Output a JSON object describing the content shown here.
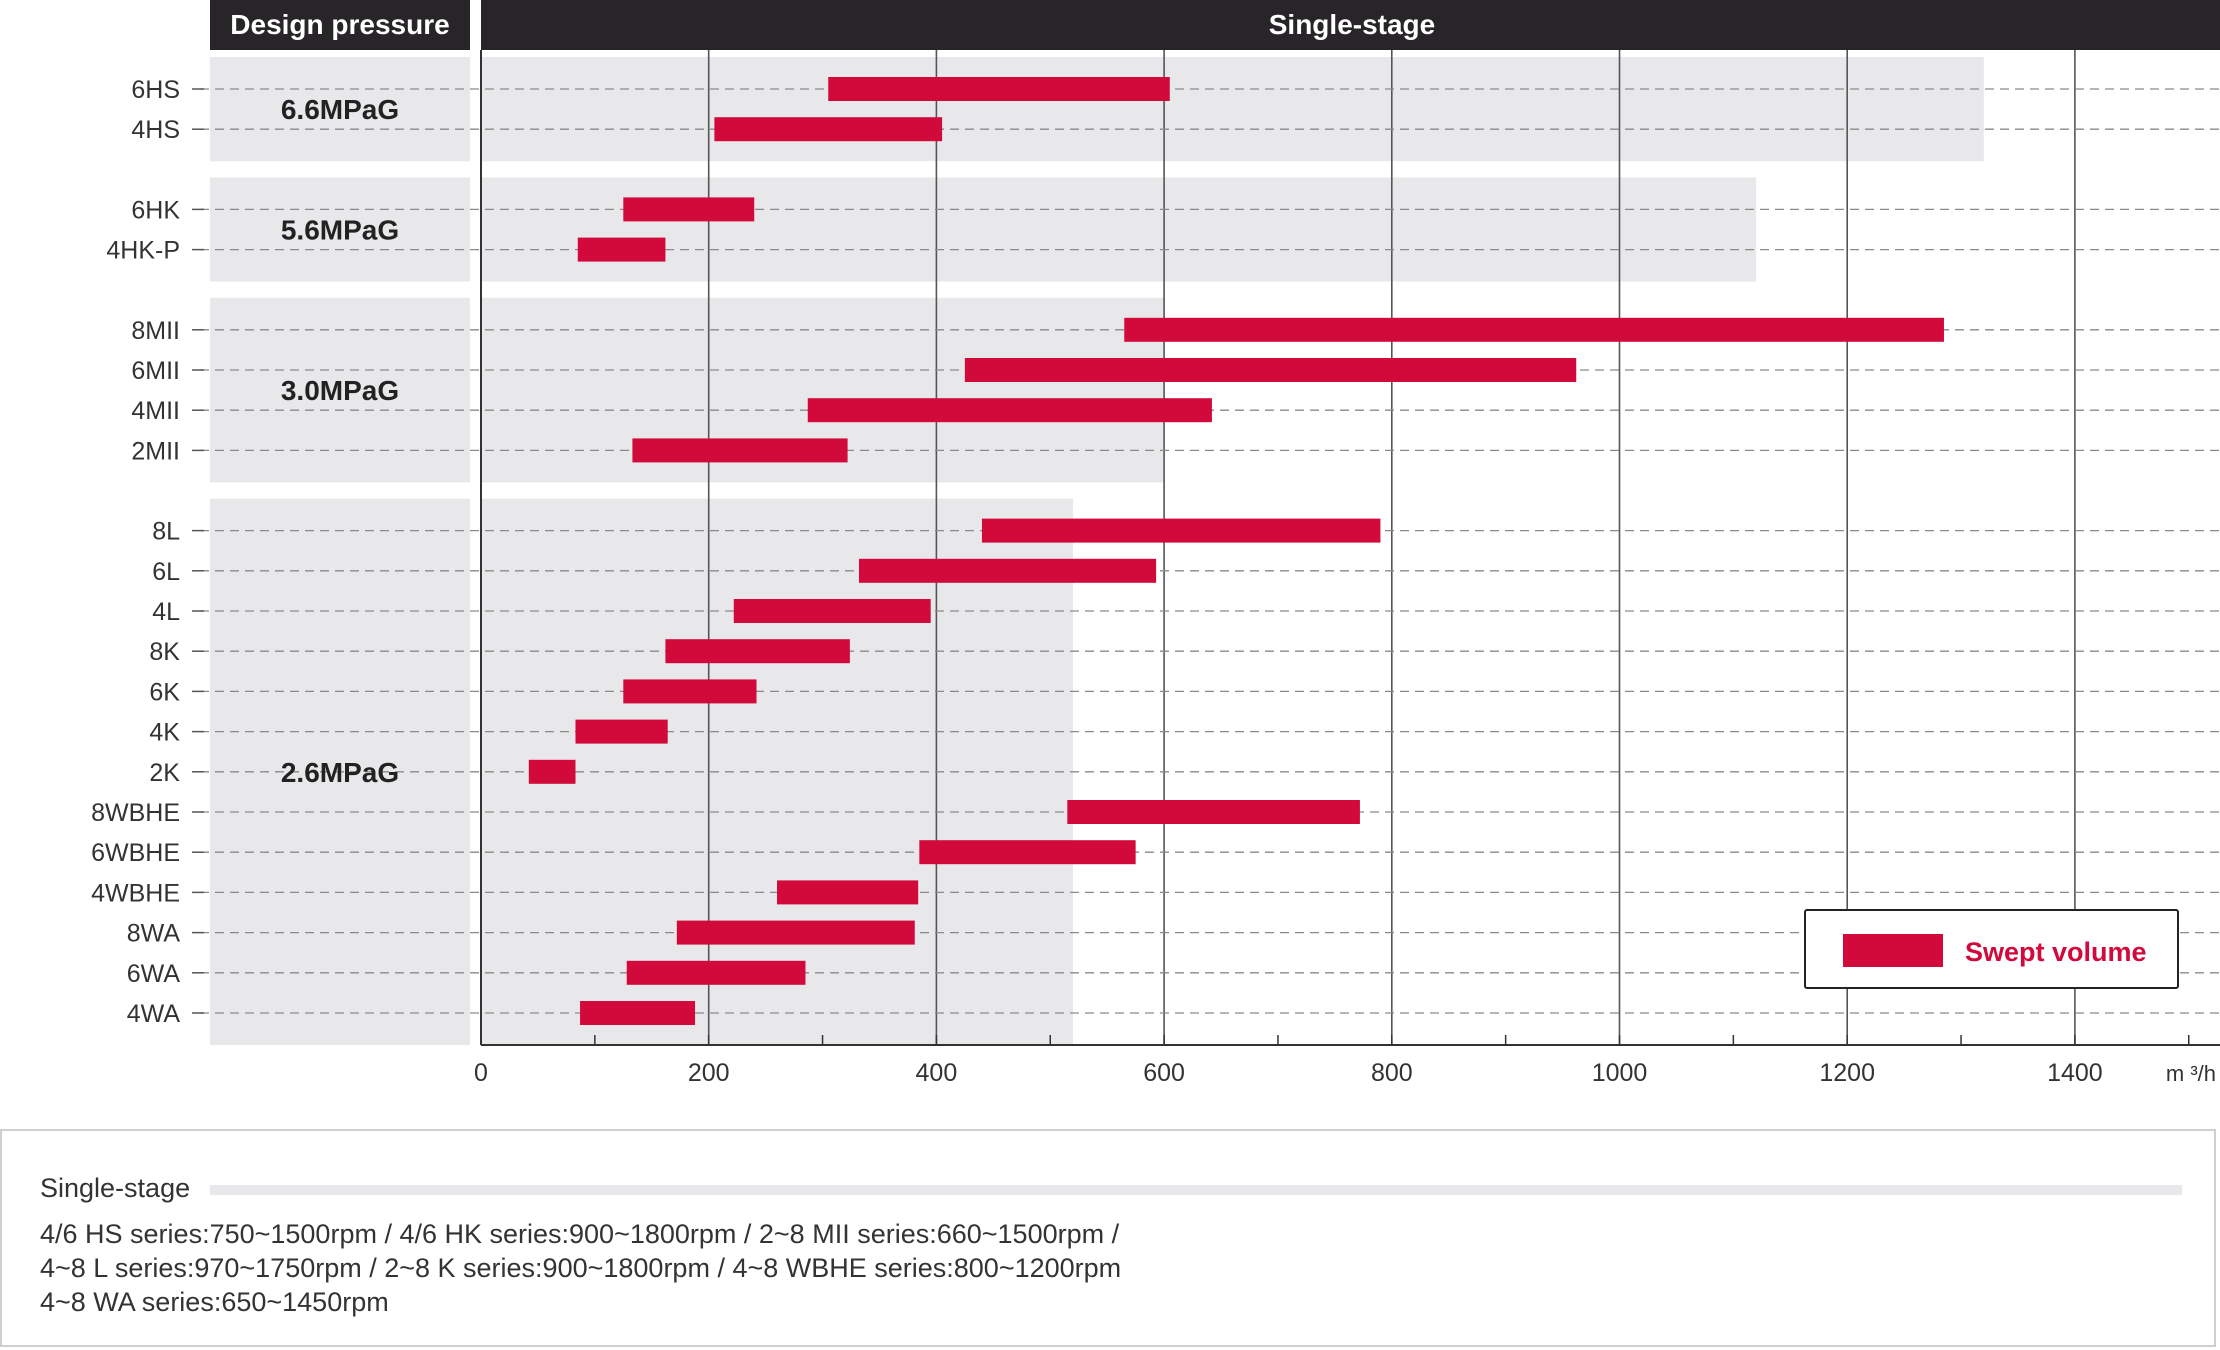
{
  "header": {
    "left": "Design pressure",
    "right": "Single-stage"
  },
  "chart_data": {
    "type": "bar",
    "orientation": "horizontal-range",
    "x_ticks": [
      0,
      200,
      400,
      600,
      800,
      1000,
      1200,
      1400
    ],
    "x_unit": "m ³/h",
    "xlim": [
      0,
      1500
    ],
    "grid": true,
    "legend": {
      "label": "Swept volume",
      "placement": "bottom-right",
      "color": "#d20a3c"
    },
    "colors": {
      "bar": "#d20a3c",
      "header": "#282528",
      "band": "#e8e8ea"
    },
    "groups": [
      {
        "label": "6.6MPaG",
        "band_max": 1320,
        "items": [
          {
            "name": "6HS",
            "min": 305,
            "max": 605
          },
          {
            "name": "4HS",
            "min": 205,
            "max": 405
          }
        ]
      },
      {
        "label": "5.6MPaG",
        "band_max": 1120,
        "items": [
          {
            "name": "6HK",
            "min": 125,
            "max": 240
          },
          {
            "name": "4HK-P",
            "min": 85,
            "max": 162
          }
        ]
      },
      {
        "label": "3.0MPaG",
        "band_max": 600,
        "items": [
          {
            "name": "8MII",
            "min": 565,
            "max": 1285
          },
          {
            "name": "6MII",
            "min": 425,
            "max": 962
          },
          {
            "name": "4MII",
            "min": 287,
            "max": 642
          },
          {
            "name": "2MII",
            "min": 133,
            "max": 322
          }
        ]
      },
      {
        "label": "2.6MPaG",
        "band_max": 520,
        "items": [
          {
            "name": "8L",
            "min": 440,
            "max": 790
          },
          {
            "name": "6L",
            "min": 332,
            "max": 593
          },
          {
            "name": "4L",
            "min": 222,
            "max": 395
          },
          {
            "name": "8K",
            "min": 162,
            "max": 324
          },
          {
            "name": "6K",
            "min": 125,
            "max": 242
          },
          {
            "name": "4K",
            "min": 83,
            "max": 164
          },
          {
            "name": "2K",
            "min": 42,
            "max": 83
          },
          {
            "name": "8WBHE",
            "min": 515,
            "max": 772
          },
          {
            "name": "6WBHE",
            "min": 385,
            "max": 575
          },
          {
            "name": "4WBHE",
            "min": 260,
            "max": 384
          },
          {
            "name": "8WA",
            "min": 172,
            "max": 381
          },
          {
            "name": "6WA",
            "min": 128,
            "max": 285
          },
          {
            "name": "4WA",
            "min": 87,
            "max": 188
          }
        ]
      }
    ]
  },
  "notes": {
    "title": "Single-stage",
    "lines": [
      "4/6 HS series:750~1500rpm / 4/6 HK series:900~1800rpm / 2~8 MII series:660~1500rpm /",
      "4~8 L series:970~1750rpm / 2~8 K series:900~1800rpm / 4~8 WBHE series:800~1200rpm",
      "4~8 WA series:650~1450rpm"
    ]
  }
}
